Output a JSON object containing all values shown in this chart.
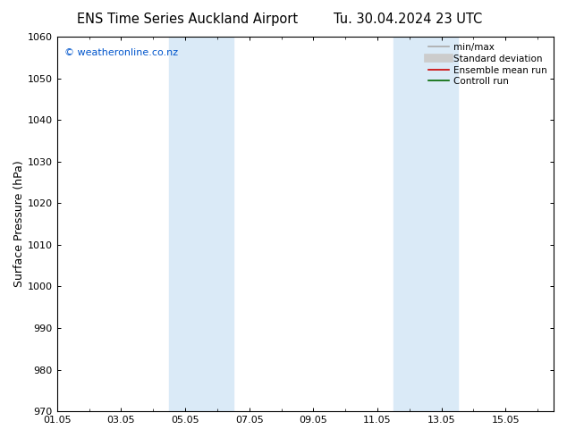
{
  "title_left": "ENS Time Series Auckland Airport",
  "title_right": "Tu. 30.04.2024 23 UTC",
  "ylabel": "Surface Pressure (hPa)",
  "ylim": [
    970,
    1060
  ],
  "yticks": [
    970,
    980,
    990,
    1000,
    1010,
    1020,
    1030,
    1040,
    1050,
    1060
  ],
  "xlim": [
    0,
    15.5
  ],
  "xtick_positions": [
    0,
    2,
    4,
    6,
    8,
    10,
    12,
    14
  ],
  "xtick_labels": [
    "01.05",
    "03.05",
    "05.05",
    "07.05",
    "09.05",
    "11.05",
    "13.05",
    "15.05"
  ],
  "shaded_bands": [
    {
      "x_start": 3.5,
      "x_end": 5.5,
      "color": "#daeaf7"
    },
    {
      "x_start": 10.5,
      "x_end": 12.5,
      "color": "#daeaf7"
    }
  ],
  "watermark": "© weatheronline.co.nz",
  "watermark_color": "#0055cc",
  "legend_items": [
    {
      "label": "min/max",
      "color": "#aaaaaa",
      "lw": 1.2,
      "linestyle": "-"
    },
    {
      "label": "Standard deviation",
      "color": "#cccccc",
      "lw": 7,
      "linestyle": "-"
    },
    {
      "label": "Ensemble mean run",
      "color": "#cc0000",
      "lw": 1.2,
      "linestyle": "-"
    },
    {
      "label": "Controll run",
      "color": "#006600",
      "lw": 1.2,
      "linestyle": "-"
    }
  ],
  "bg_color": "#ffffff",
  "plot_bg_color": "#ffffff",
  "title_fontsize": 10.5,
  "ylabel_fontsize": 9,
  "tick_fontsize": 8,
  "watermark_fontsize": 8,
  "legend_fontsize": 7.5
}
